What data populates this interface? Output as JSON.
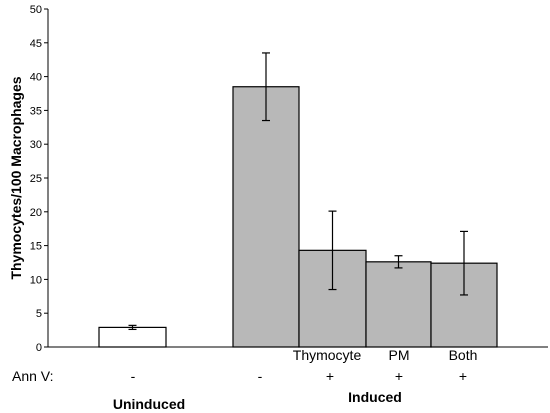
{
  "chart_data": {
    "type": "bar",
    "ylabel": "Thymocytes/100 Macrophages",
    "xlabel": "",
    "ylim": [
      0,
      50
    ],
    "yticks": [
      "0",
      "5",
      "10",
      "15",
      "20",
      "25",
      "30",
      "35",
      "40",
      "45",
      "50"
    ],
    "grid": false,
    "legend": "none",
    "categories": [
      "",
      "",
      "Thymocyte",
      "PM",
      "Both"
    ],
    "ann_v_label": "Ann V:",
    "ann_v_signs": [
      "-",
      "-",
      "+",
      "+",
      "+"
    ],
    "groups": [
      "Uninduced",
      "Induced"
    ],
    "values": [
      2.9,
      38.5,
      14.3,
      12.6,
      12.4
    ],
    "errors": [
      0.3,
      5.0,
      5.8,
      0.9,
      4.7
    ],
    "bar_colors": [
      "#ffffff",
      "#b8b8b8",
      "#b8b8b8",
      "#b8b8b8",
      "#b8b8b8"
    ]
  }
}
